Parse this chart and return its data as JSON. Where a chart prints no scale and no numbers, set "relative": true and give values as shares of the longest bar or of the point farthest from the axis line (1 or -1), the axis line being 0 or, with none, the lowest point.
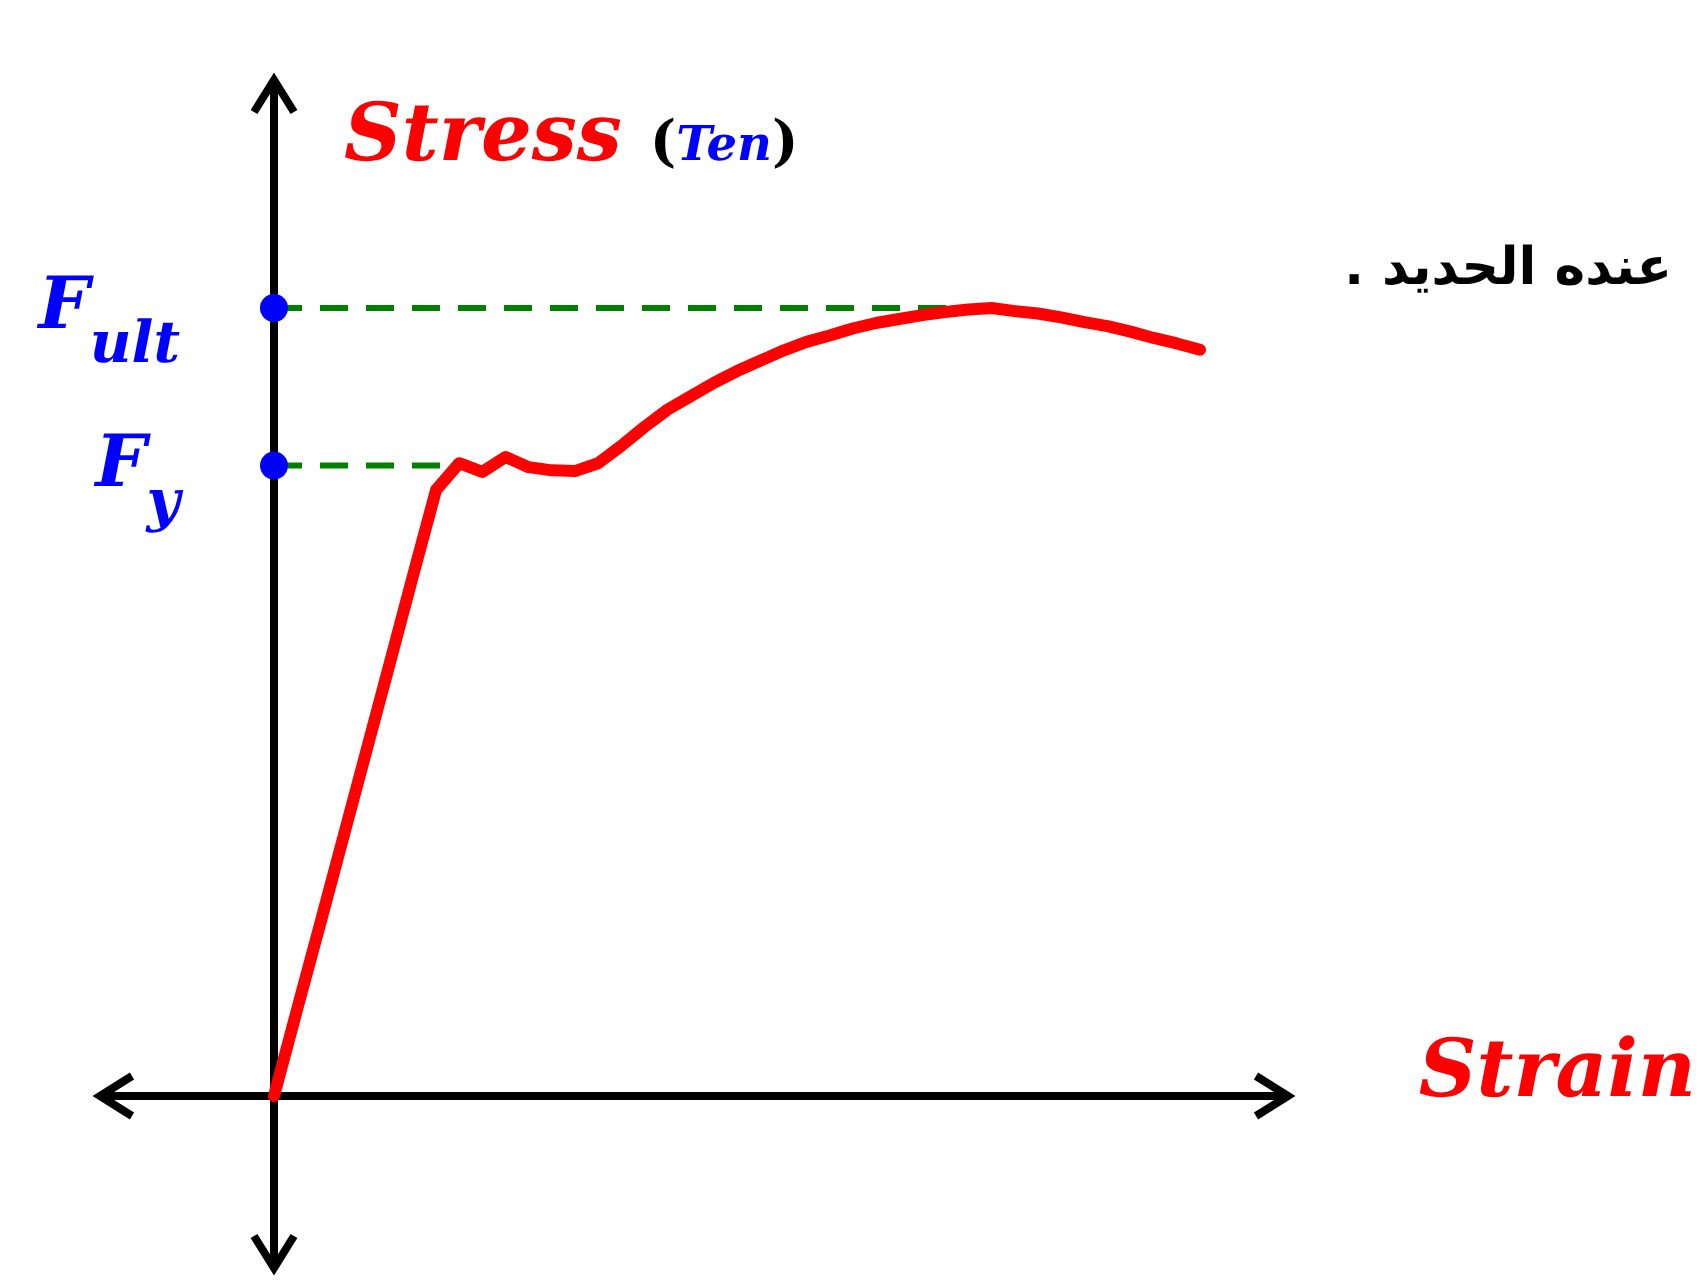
{
  "chart_data": {
    "type": "line",
    "relative": true,
    "ylabel": "Stress (Ten)",
    "xlabel": "Strain",
    "annotations": [
      "عنده الحديد ."
    ],
    "categories": [
      null,
      null,
      null,
      null,
      null,
      null,
      null,
      null,
      null,
      null,
      null,
      null,
      null,
      null,
      null,
      null,
      null,
      null,
      null,
      null,
      null,
      null,
      null,
      null,
      null,
      null,
      null,
      null,
      null,
      null,
      null,
      null,
      null,
      null,
      null,
      null,
      null,
      null,
      null,
      null,
      null
    ],
    "series": [
      {
        "color": "#ff0000",
        "values": [
          0,
          0.11,
          0.219,
          0.329,
          0.439,
          0.549,
          0.66,
          0.769,
          0.803,
          0.792,
          0.811,
          0.798,
          0.794,
          0.793,
          0.803,
          0.825,
          0.849,
          0.871,
          0.888,
          0.905,
          0.92,
          0.933,
          0.946,
          0.957,
          0.965,
          0.974,
          0.981,
          0.986,
          0.991,
          0.995,
          0.998,
          1,
          0.996,
          0.993,
          0.988,
          0.982,
          0.977,
          0.97,
          0.962,
          0.955,
          0.947
        ]
      }
    ],
    "ref_lines": [
      {
        "axis": "y",
        "value": 1,
        "label": "F$_{ult}$",
        "color": "#008000",
        "line_style": "dashed"
      },
      {
        "axis": "y",
        "value": 0.8,
        "label": "F$_{y}$",
        "color": "#008000",
        "line_style": "dashed"
      }
    ],
    "marker": "none",
    "line_style": "solid"
  }
}
